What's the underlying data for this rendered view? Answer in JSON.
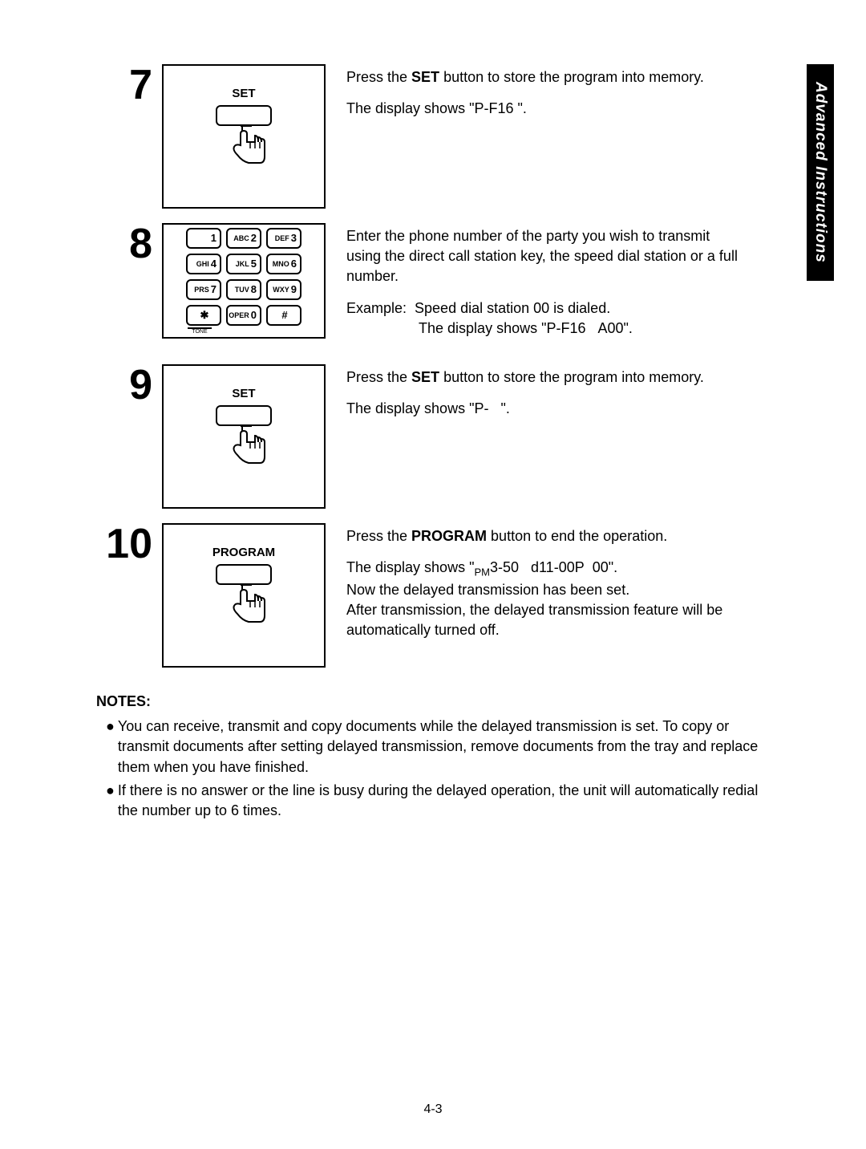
{
  "side_tab": "Advanced Instructions",
  "steps": [
    {
      "num": "7",
      "figure_type": "button",
      "button_label": "SET",
      "paragraphs": [
        "Press the <b>SET</b> button to store the program into memory.",
        "The display shows \"P-F16  \"."
      ]
    },
    {
      "num": "8",
      "figure_type": "keypad",
      "paragraphs": [
        "Enter the phone number of the party you wish to transmit using the direct call station key, the speed dial station or a full number.",
        "Example:&nbsp;&nbsp;Speed dial station 00 is dialed.<br><span class=\"indent-inline\">&nbsp;&nbsp;&nbsp;&nbsp;&nbsp;&nbsp;&nbsp;&nbsp;&nbsp;&nbsp;&nbsp;&nbsp;&nbsp;&nbsp;&nbsp;&nbsp;&nbsp;&nbsp;The display shows \"P-F16&nbsp;&nbsp;&nbsp;A00\".</span>"
      ]
    },
    {
      "num": "9",
      "figure_type": "button",
      "button_label": "SET",
      "paragraphs": [
        "Press the <b>SET</b> button to store the program into memory.",
        "The display shows \"P-&nbsp;&nbsp;&nbsp;\"."
      ]
    },
    {
      "num": "10",
      "figure_type": "button",
      "button_label": "PROGRAM",
      "paragraphs": [
        "Press the <b>PROGRAM</b> button to end the operation.",
        "The display shows  \"<span class=\"sub\">PM</span>3-50&nbsp;&nbsp;&nbsp;d11-00P&nbsp;&nbsp;00\".<br>Now the delayed transmission has been set.<br>After transmission, the delayed transmission feature will be automatically turned off."
      ]
    }
  ],
  "keypad": {
    "keys": [
      {
        "sub": "",
        "main": "1"
      },
      {
        "sub": "ABC",
        "main": "2"
      },
      {
        "sub": "DEF",
        "main": "3"
      },
      {
        "sub": "GHI",
        "main": "4"
      },
      {
        "sub": "JKL",
        "main": "5"
      },
      {
        "sub": "MNO",
        "main": "6"
      },
      {
        "sub": "PRS",
        "main": "7"
      },
      {
        "sub": "TUV",
        "main": "8"
      },
      {
        "sub": "WXY",
        "main": "9"
      },
      {
        "sub": "",
        "main": "✱",
        "center": true
      },
      {
        "sub": "OPER",
        "main": "0"
      },
      {
        "sub": "",
        "main": "#",
        "center": true
      }
    ],
    "tone_label": "TONE"
  },
  "notes": {
    "title": "NOTES:",
    "items": [
      "You can receive, transmit and copy documents while the delayed transmission is set. To copy or transmit documents after setting delayed transmission, remove documents from the tray and replace them when you have finished.",
      "If there is no answer or the line is busy during the delayed operation, the unit will automatically redial the number up to 6 times."
    ]
  },
  "page_number": "4-3"
}
